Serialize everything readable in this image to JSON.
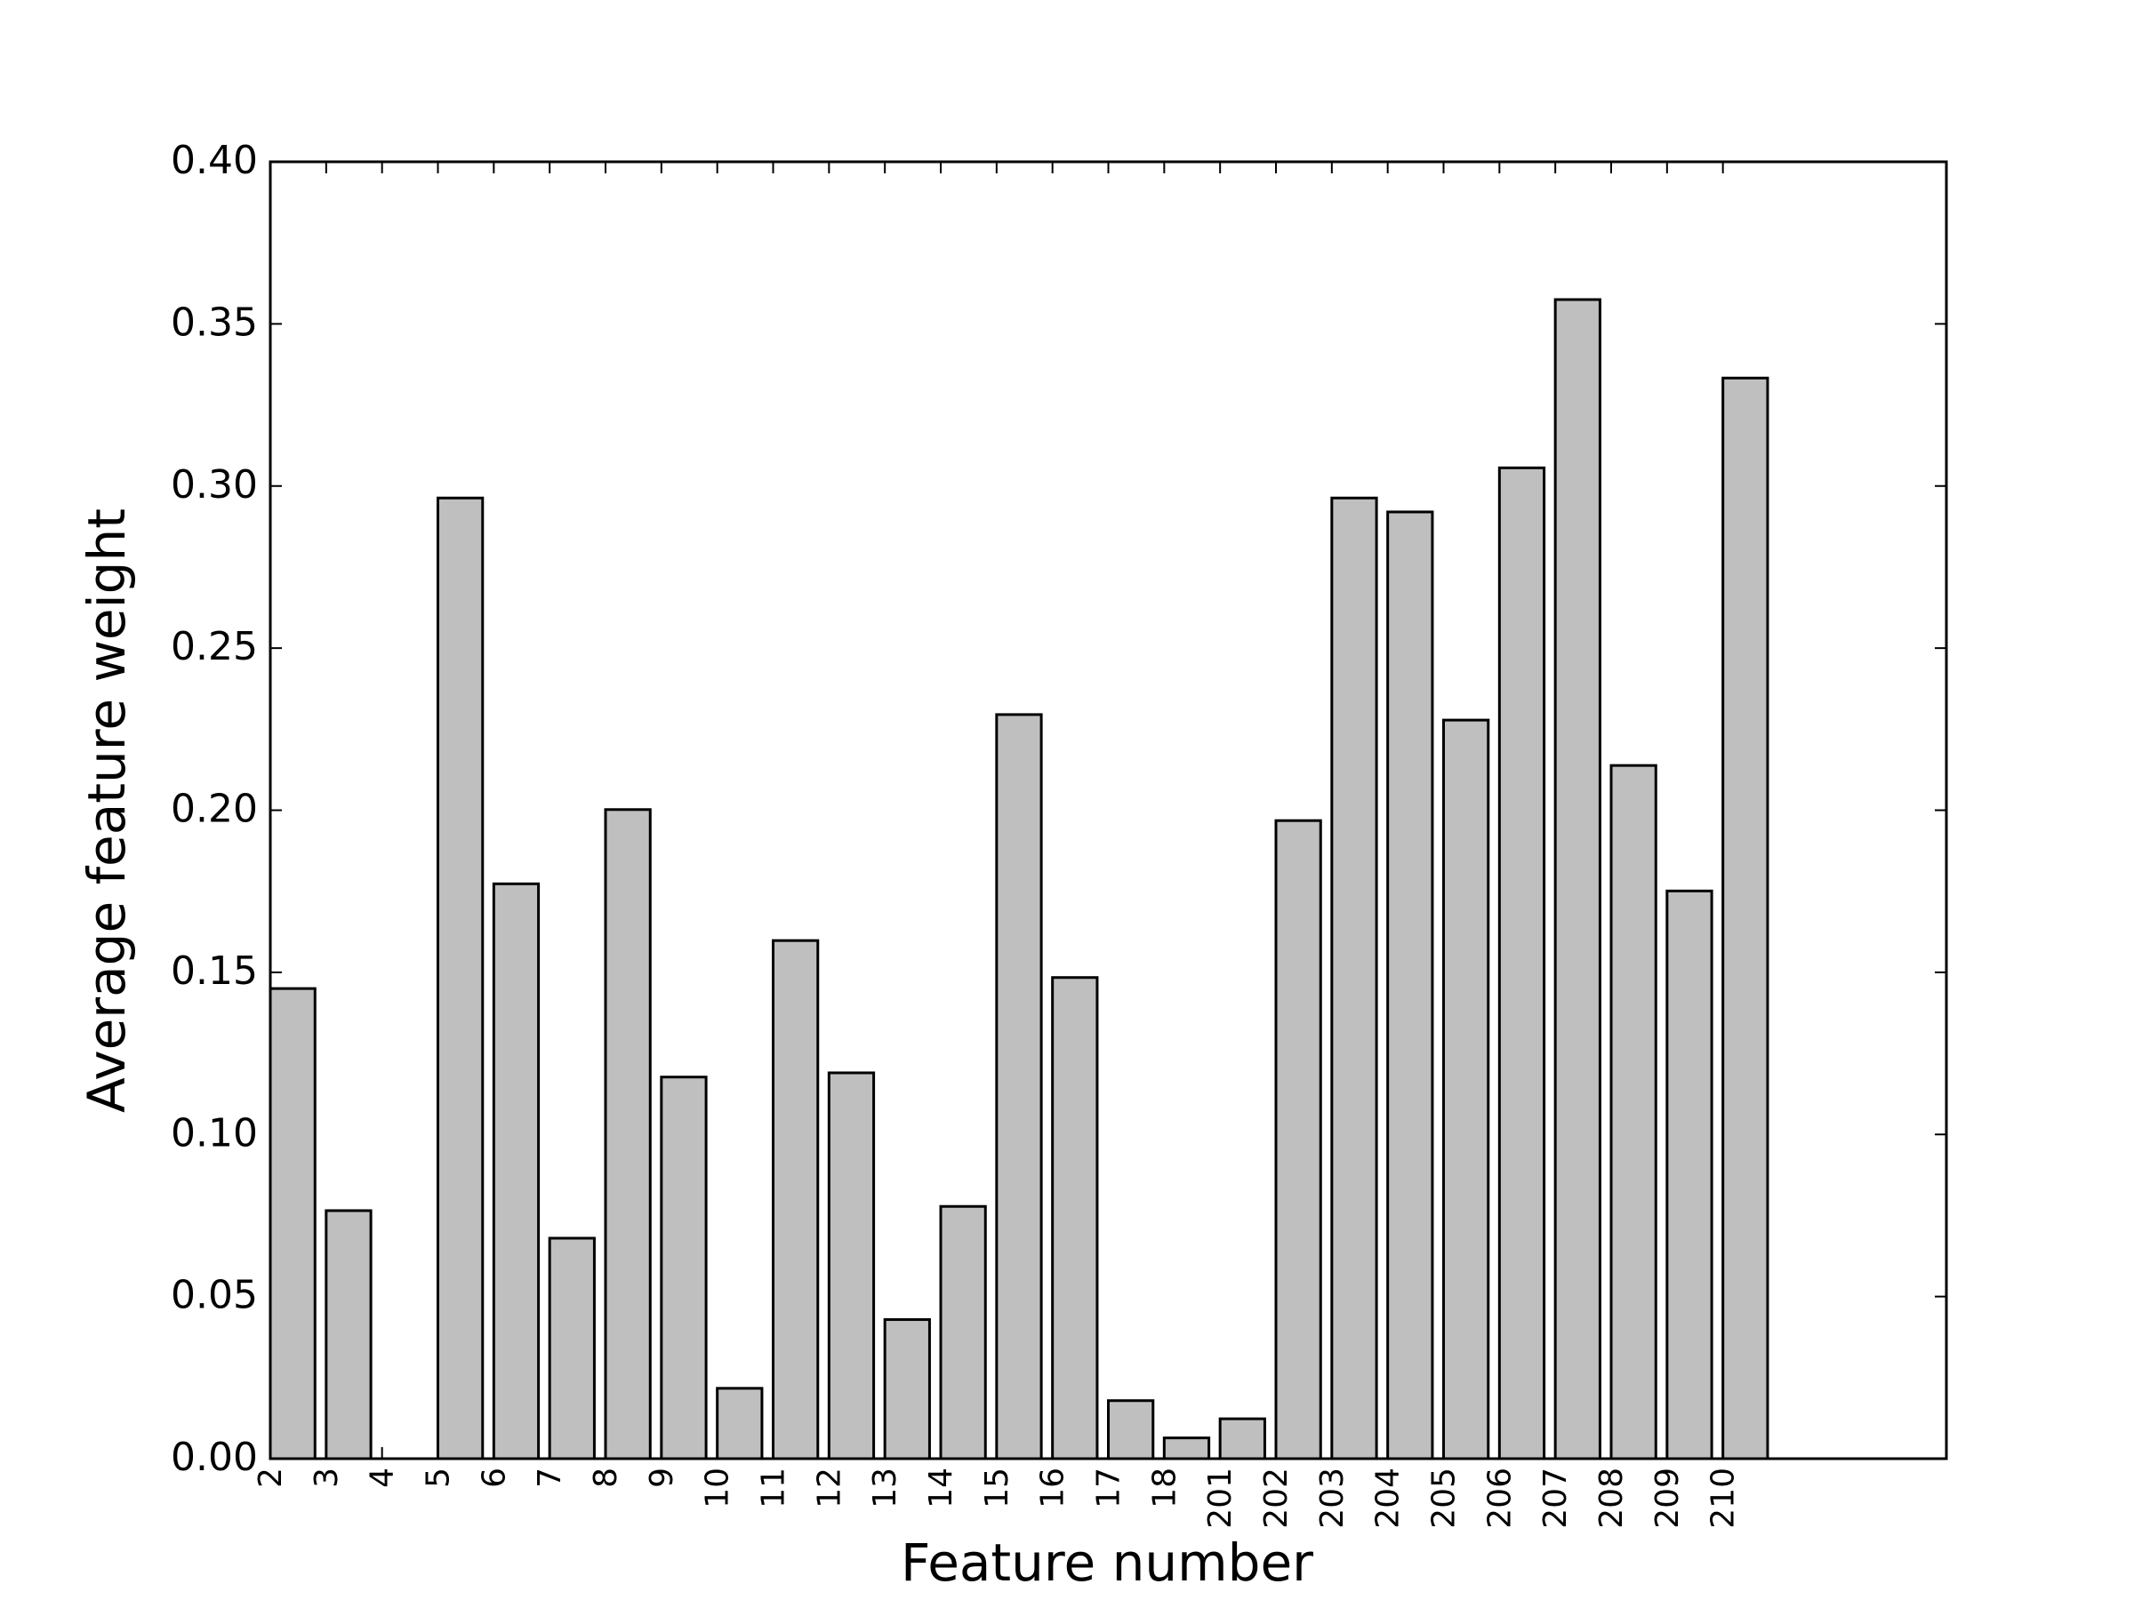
{
  "chart_data": {
    "type": "bar",
    "x_label": "Feature number",
    "y_label": "Average feature weight",
    "categories": [
      "2",
      "3",
      "4",
      "5",
      "6",
      "7",
      "8",
      "9",
      "10",
      "11",
      "12",
      "13",
      "14",
      "15",
      "16",
      "17",
      "18",
      "201",
      "202",
      "203",
      "204",
      "205",
      "206",
      "207",
      "208",
      "209",
      "210"
    ],
    "values": [
      0.145,
      0.0765,
      0,
      0.2963,
      0.1773,
      0.068,
      0.2002,
      0.1177,
      0.0217,
      0.1598,
      0.119,
      0.0429,
      0.0778,
      0.2295,
      0.1484,
      0.0179,
      0.0064,
      0.0123,
      0.1968,
      0.2963,
      0.292,
      0.2278,
      0.3056,
      0.3575,
      0.2138,
      0.1751,
      0.3333
    ],
    "color": "#bfbfbf",
    "ylim": [
      0,
      0.4
    ],
    "yticks": [
      {
        "value": 0,
        "label": "0.00"
      },
      {
        "value": 0.05,
        "label": "0.05"
      },
      {
        "value": 0.1,
        "label": "0.10"
      },
      {
        "value": 0.15,
        "label": "0.15"
      },
      {
        "value": 0.2,
        "label": "0.20"
      },
      {
        "value": 0.25,
        "label": "0.25"
      },
      {
        "value": 0.3,
        "label": "0.30"
      },
      {
        "value": 0.35,
        "label": "0.35"
      },
      {
        "value": 0.4,
        "label": "0.40"
      }
    ],
    "grid": false
  }
}
